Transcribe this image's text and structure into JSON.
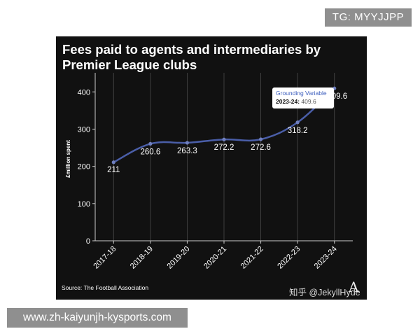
{
  "overlay": {
    "tg_handle": "TG: MYYJJPP",
    "site_url": "www.zh-kaiyunjh-kysports.com"
  },
  "watermark": {
    "zhihu": "知乎 @JekyllHyde",
    "logo": "A"
  },
  "colors": {
    "panel_bg": "#111111",
    "line": "#4a5ea8",
    "point": "#6f7fbf",
    "text": "#ffffff",
    "tooltip_series": "#3b5dbd"
  },
  "tooltip": {
    "series": "Grounding Variable",
    "label": "2023-24:",
    "value": "409.6"
  },
  "chart_data": {
    "type": "line",
    "title": "Fees paid to agents and intermediaries by Premier League clubs",
    "source": "Source: The Football Association",
    "xlabel": "",
    "ylabel": "£million spent",
    "categories": [
      "2017-18",
      "2018-19",
      "2019-20",
      "2020-21",
      "2021-22",
      "2022-23",
      "2023-24"
    ],
    "series": [
      {
        "values": [
          211,
          260.6,
          263.3,
          272.2,
          272.6,
          318.2,
          409.6
        ],
        "labels": [
          "211",
          "260.6",
          "263.3",
          "272.2",
          "272.6",
          "318.2",
          "409.6"
        ]
      }
    ],
    "ylim": [
      0,
      440
    ],
    "yticks": [
      0,
      100,
      200,
      300,
      400
    ],
    "grid": "vertical",
    "legend": "none"
  }
}
